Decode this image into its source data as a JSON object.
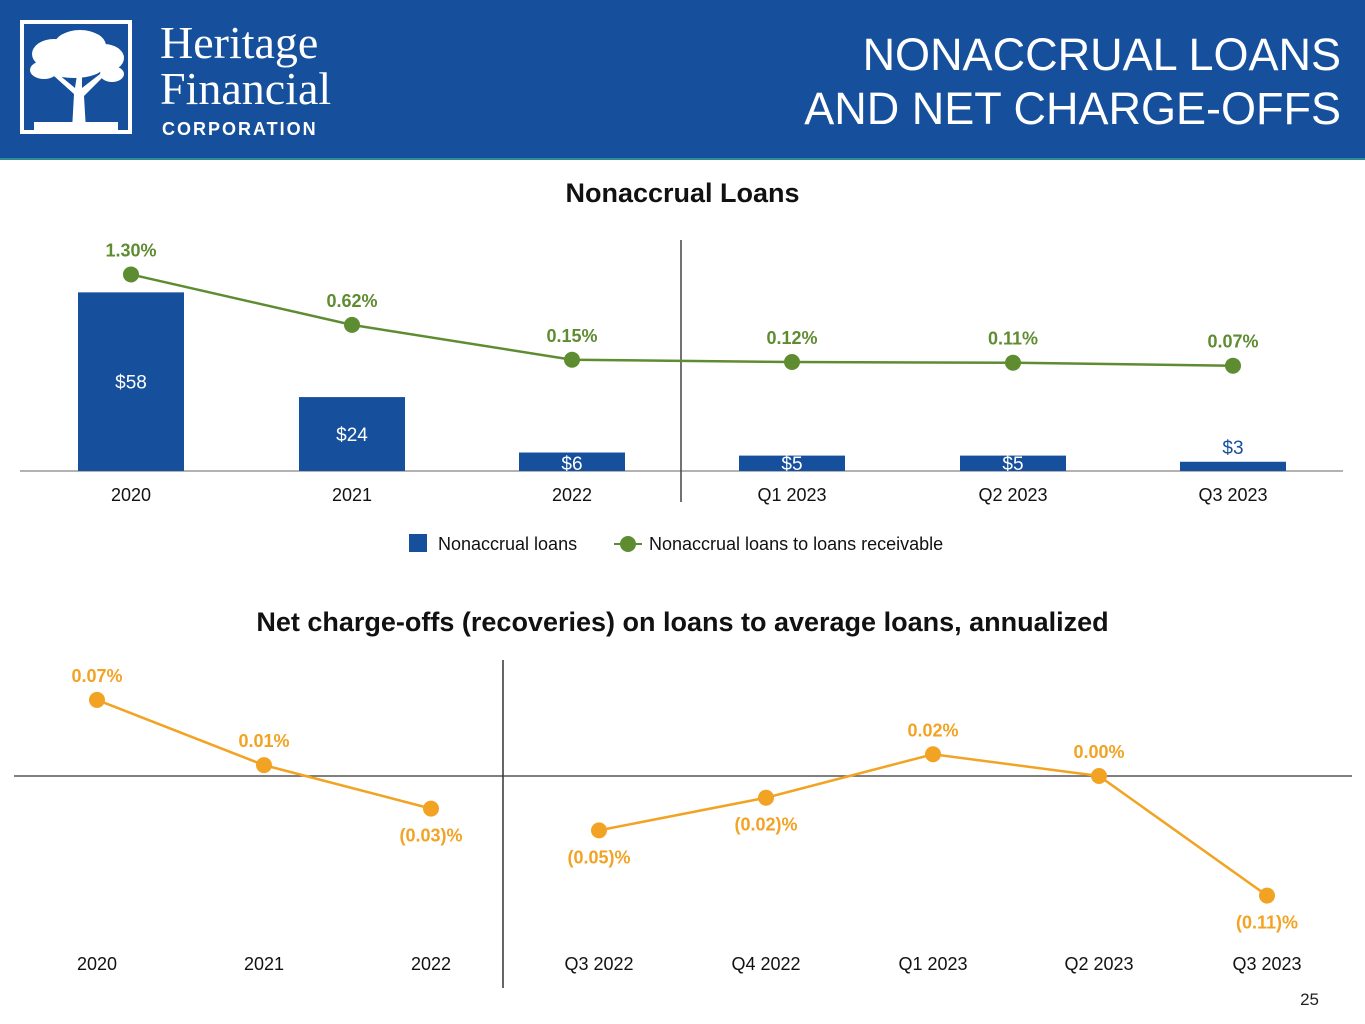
{
  "header": {
    "company_line1": "Heritage",
    "company_line2": "Financial",
    "company_line3": "CORPORATION",
    "title_line1": "NONACCRUAL LOANS",
    "title_line2": "AND NET CHARGE-OFFS",
    "logo_icon": "tree-icon",
    "color": "#16509c"
  },
  "page_number": "25",
  "chart_data": [
    {
      "type": "bar",
      "title": "Nonaccrual Loans",
      "categories": [
        "2020",
        "2021",
        "2022",
        "Q1 2023",
        "Q2 2023",
        "Q3 2023"
      ],
      "series": [
        {
          "name": "Nonaccrual loans",
          "type": "bar",
          "color": "#16509c",
          "values": [
            58,
            24,
            6,
            5,
            5,
            3
          ],
          "labels": [
            "$58",
            "$24",
            "$6",
            "$5",
            "$5",
            "$3"
          ]
        },
        {
          "name": "Nonaccrual loans to loans receivable",
          "type": "line",
          "color": "#5e8c31",
          "values": [
            1.3,
            0.62,
            0.15,
            0.12,
            0.11,
            0.07
          ],
          "labels": [
            "1.30%",
            "0.62%",
            "0.15%",
            "0.12%",
            "0.11%",
            "0.07%"
          ]
        }
      ],
      "legend": "bottom-center",
      "grid": false
    },
    {
      "type": "line",
      "title": "Net charge-offs (recoveries) on loans to average loans, annualized",
      "categories": [
        "2020",
        "2021",
        "2022",
        "Q3 2022",
        "Q4 2022",
        "Q1 2023",
        "Q2 2023",
        "Q3 2023"
      ],
      "series": [
        {
          "color": "#f2a324",
          "values": [
            0.07,
            0.01,
            -0.03,
            -0.05,
            -0.02,
            0.02,
            0.0,
            -0.11
          ],
          "labels": [
            "0.07%",
            "0.01%",
            "(0.03)%",
            "(0.05)%",
            "(0.02)%",
            "0.02%",
            "0.00%",
            "(0.11)%"
          ]
        }
      ],
      "legend": "none",
      "grid": false
    }
  ]
}
